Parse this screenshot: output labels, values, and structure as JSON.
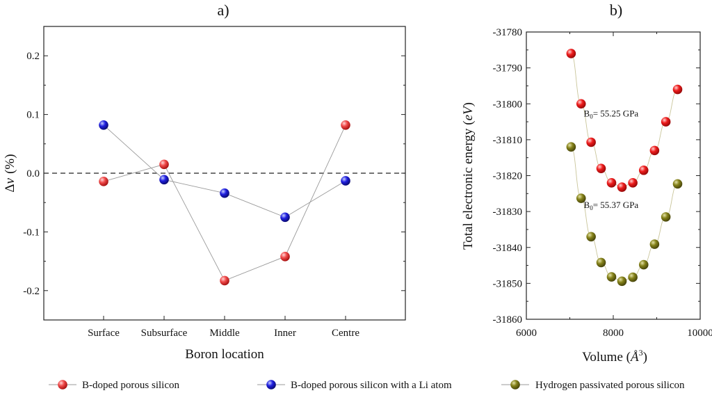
{
  "chart_data": [
    {
      "type": "scatter",
      "title": "a)",
      "xlabel": "Boron location",
      "ylabel": "Δv  (%)",
      "ylabel_parts": {
        "delta": "Δ",
        "var": "v",
        "unit": "(%)"
      },
      "categories": [
        "Surface",
        "Subsurface",
        "Middle",
        "Inner",
        "Centre"
      ],
      "ylim": [
        -0.25,
        0.25
      ],
      "yticks": [
        "0.2",
        "0.1",
        "0.0",
        "-0.1",
        "-0.2"
      ],
      "ytick_values": [
        0.2,
        0.1,
        0.0,
        -0.1,
        -0.2
      ],
      "reference_line": 0.0,
      "series": [
        {
          "name": "B-doped porous silicon",
          "color": "#ef4444",
          "values": [
            -0.014,
            0.015,
            -0.183,
            -0.142,
            0.082
          ]
        },
        {
          "name": "B-doped porous silicon with a Li atom",
          "color": "#1d1ddb",
          "values": [
            0.082,
            -0.011,
            -0.034,
            -0.075,
            -0.013
          ]
        }
      ]
    },
    {
      "type": "scatter",
      "title": "b)",
      "xlabel": "Volume (Å³)",
      "xlabel_parts": {
        "prefix": "Volume (",
        "symbol": "Å",
        "sup": "3",
        "suffix": ")"
      },
      "ylabel": "Total electronic energy (eV)",
      "ylabel_parts": {
        "prefix": "Total electronic energy (",
        "unit": "eV",
        "suffix": ")"
      },
      "xlim": [
        6000,
        10000
      ],
      "ylim": [
        -31860,
        -31780
      ],
      "xticks": [
        "6000",
        "8000",
        "10000"
      ],
      "xtick_values": [
        6000,
        8000,
        10000
      ],
      "yticks": [
        "-31780",
        "-31790",
        "-31800",
        "-31810",
        "-31820",
        "-31830",
        "-31840",
        "-31850",
        "-31860"
      ],
      "ytick_values": [
        -31780,
        -31790,
        -31800,
        -31810,
        -31820,
        -31830,
        -31840,
        -31850,
        -31860
      ],
      "annotations": [
        {
          "text_base": "B",
          "text_sub": "0",
          "text_rest": "= 55.25 GPa",
          "x": 7950,
          "y": -31803.5
        },
        {
          "text_base": "B",
          "text_sub": "0",
          "text_rest": "= 55.37 GPa",
          "x": 7950,
          "y": -31829
        }
      ],
      "series": [
        {
          "name": "B-doped porous silicon",
          "color": "#ef2020",
          "x": [
            7030,
            7260,
            7490,
            7720,
            7960,
            8200,
            8450,
            8700,
            8950,
            9210,
            9480
          ],
          "y": [
            -31786,
            -31800,
            -31810.7,
            -31818,
            -31822,
            -31823.2,
            -31822,
            -31818.5,
            -31813,
            -31805,
            -31796
          ]
        },
        {
          "name": "Hydrogen passivated porous silicon",
          "color": "#7d7a12",
          "x": [
            7030,
            7260,
            7490,
            7720,
            7960,
            8200,
            8450,
            8700,
            8950,
            9210,
            9480
          ],
          "y": [
            -31812,
            -31826.3,
            -31837,
            -31844.2,
            -31848.2,
            -31849.4,
            -31848.3,
            -31844.8,
            -31839.1,
            -31831.5,
            -31822.3
          ]
        }
      ]
    }
  ],
  "legend": [
    {
      "label": "B-doped porous silicon",
      "color": "#ef4444"
    },
    {
      "label": "B-doped porous silicon with a Li atom",
      "color": "#1d1ddb"
    },
    {
      "label": "Hydrogen passivated porous silicon",
      "color": "#7d7a12"
    }
  ]
}
